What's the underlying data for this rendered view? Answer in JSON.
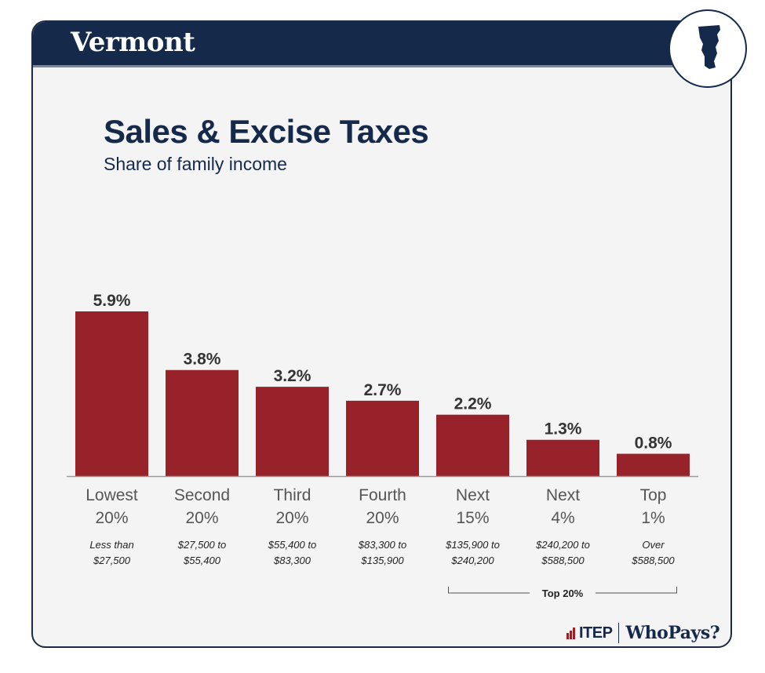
{
  "header": {
    "state": "Vermont",
    "state_icon": "vermont-outline-icon"
  },
  "colors": {
    "bar": "#98222a",
    "navy": "#15294b",
    "text": "#333333"
  },
  "chart_data": {
    "type": "bar",
    "title": "Sales & Excise Taxes",
    "subtitle": "Share of family income",
    "categories": [
      [
        "Lowest",
        "20%"
      ],
      [
        "Second",
        "20%"
      ],
      [
        "Third",
        "20%"
      ],
      [
        "Fourth",
        "20%"
      ],
      [
        "Next",
        "15%"
      ],
      [
        "Next",
        "4%"
      ],
      [
        "Top",
        "1%"
      ]
    ],
    "income_ranges": [
      [
        "Less than",
        "$27,500"
      ],
      [
        "$27,500 to",
        "$55,400"
      ],
      [
        "$55,400 to",
        "$83,300"
      ],
      [
        "$83,300 to",
        "$135,900"
      ],
      [
        "$135,900 to",
        "$240,200"
      ],
      [
        "$240,200 to",
        "$588,500"
      ],
      [
        "Over",
        "$588,500"
      ]
    ],
    "values": [
      5.9,
      3.8,
      3.2,
      2.7,
      2.2,
      1.3,
      0.8
    ],
    "value_labels": [
      "5.9%",
      "3.8%",
      "3.2%",
      "2.7%",
      "2.2%",
      "1.3%",
      "0.8%"
    ],
    "ylim": [
      0,
      5.9
    ],
    "grid": false,
    "bracket": {
      "label": "Top 20%",
      "from_index": 4,
      "to_index": 6
    }
  },
  "footer": {
    "itep": "ITEP",
    "whopays": "WhoPays?"
  }
}
